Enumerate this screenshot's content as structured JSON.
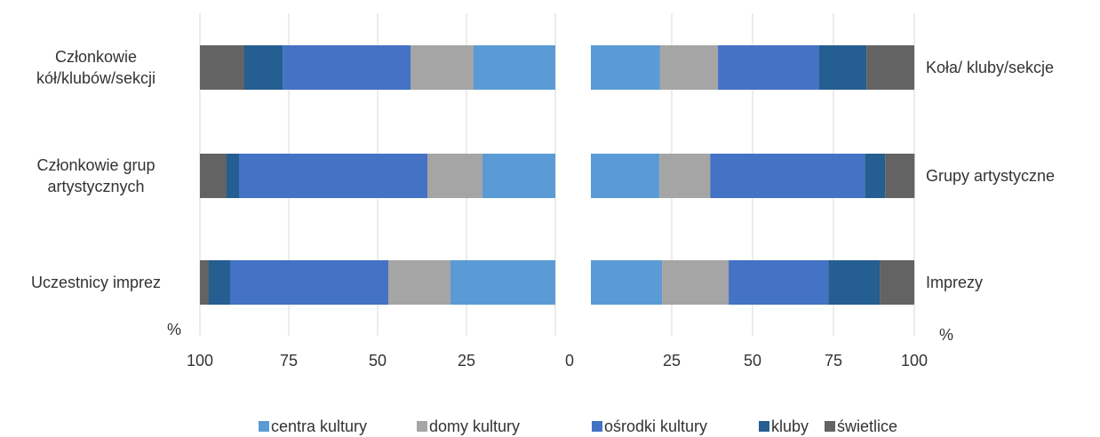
{
  "chart_data": [
    {
      "type": "bar",
      "orientation": "horizontal",
      "categories": [
        "Członkowie kół/klubów/sekcji",
        "Członkowie grup artystycznych",
        "Uczestnicy imprez"
      ],
      "series": [
        {
          "name": "centra kultury",
          "color": "#5b9bd5",
          "values": [
            23,
            20.5,
            29.5
          ]
        },
        {
          "name": "domy kultury",
          "color": "#a5a5a5",
          "values": [
            17.7,
            15.5,
            17.5
          ]
        },
        {
          "name": "ośrodki kultury",
          "color": "#4472c4",
          "values": [
            36,
            53,
            44.5
          ]
        },
        {
          "name": "kluby",
          "color": "#255e91",
          "values": [
            10.8,
            3.5,
            6
          ]
        },
        {
          "name": "świetlice",
          "color": "#636363",
          "values": [
            12.5,
            7.5,
            2.5
          ]
        }
      ],
      "xlim": [
        100,
        0
      ],
      "xticks": [
        100,
        75,
        50,
        25,
        0
      ],
      "x_label": "%",
      "grid": true,
      "legend": "bottom"
    },
    {
      "type": "bar",
      "orientation": "horizontal",
      "categories": [
        "Koła/ kluby/sekcje",
        "Grupy artystyczne",
        "Imprezy"
      ],
      "series": [
        {
          "name": "centra kultury",
          "color": "#5b9bd5",
          "values": [
            21.4,
            21.2,
            22
          ]
        },
        {
          "name": "domy kultury",
          "color": "#a5a5a5",
          "values": [
            17.9,
            15.7,
            20.6
          ]
        },
        {
          "name": "ośrodki kultury",
          "color": "#4472c4",
          "values": [
            31.3,
            47.8,
            30.8
          ]
        },
        {
          "name": "kluby",
          "color": "#255e91",
          "values": [
            14.6,
            6.3,
            15.9
          ]
        },
        {
          "name": "świetlice",
          "color": "#636363",
          "values": [
            14.8,
            9.1,
            10.7
          ]
        }
      ],
      "xlim": [
        0,
        100
      ],
      "xticks": [
        25,
        50,
        75,
        100
      ],
      "x_label": "%",
      "grid": true
    }
  ]
}
